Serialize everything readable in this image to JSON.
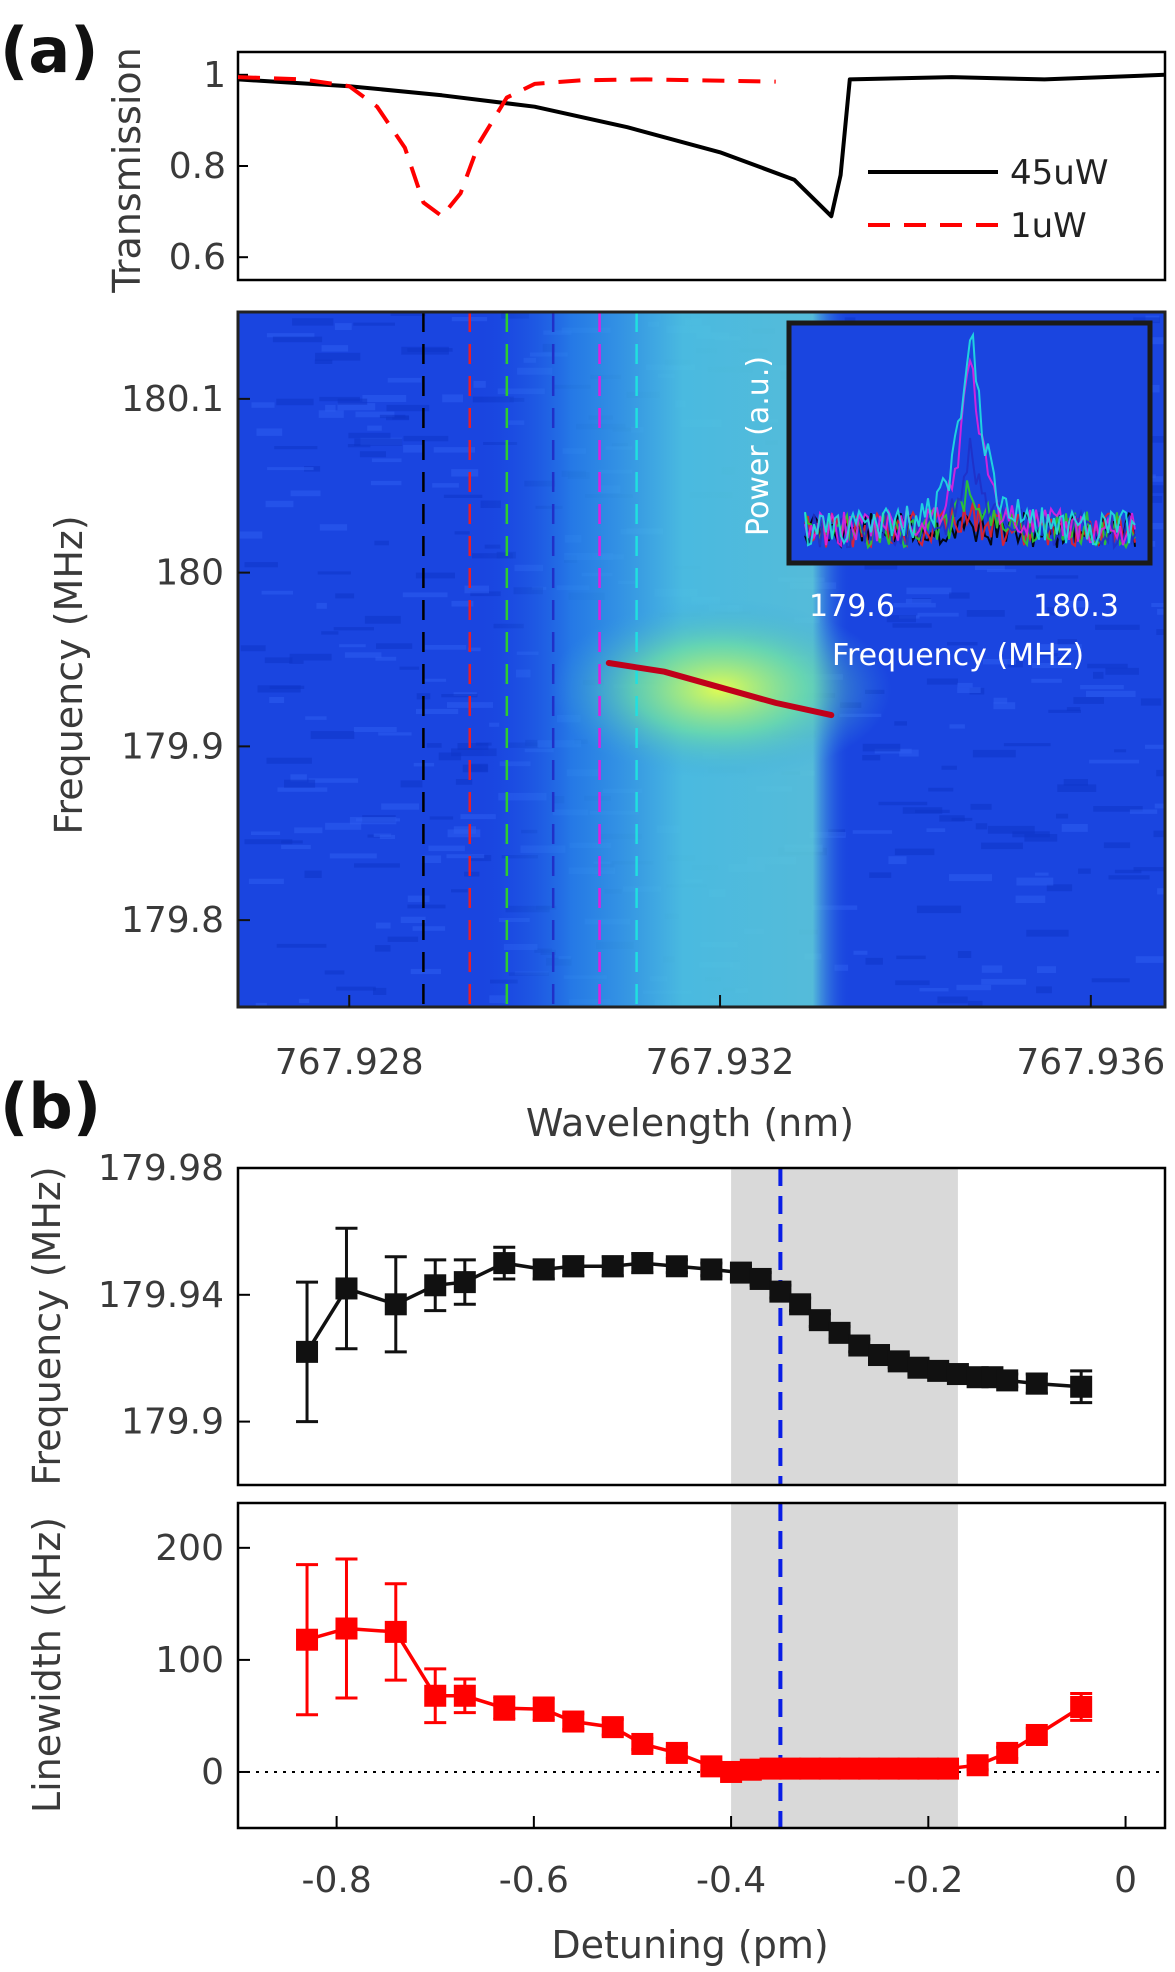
{
  "panels": {
    "a": "(a)",
    "b": "(b)"
  },
  "chart_data": [
    {
      "id": "transmission",
      "type": "line",
      "ylabel": "Transmission",
      "xlim": [
        767.9268,
        767.9368
      ],
      "ylim": [
        0.55,
        1.05
      ],
      "yticks": [
        "0.6",
        "0.8",
        "1"
      ],
      "legend_position": "right",
      "series": [
        {
          "name": "45uW",
          "color": "#000000",
          "x": [
            767.9268,
            767.928,
            767.929,
            767.93,
            767.931,
            767.932,
            767.9328,
            767.9332,
            767.9333,
            767.9334,
            767.9345,
            767.9355,
            767.9368
          ],
          "y": [
            0.99,
            0.975,
            0.955,
            0.93,
            0.885,
            0.83,
            0.77,
            0.69,
            0.78,
            0.99,
            0.995,
            0.99,
            1.0
          ]
        },
        {
          "name": "1uW",
          "color": "#ff0000",
          "x": [
            767.9268,
            767.9275,
            767.928,
            767.9283,
            767.9286,
            767.9288,
            767.929,
            767.9292,
            767.9294,
            767.9297,
            767.93,
            767.9305,
            767.9312,
            767.9318,
            767.9326
          ],
          "y": [
            0.995,
            0.99,
            0.975,
            0.93,
            0.84,
            0.72,
            0.69,
            0.74,
            0.85,
            0.95,
            0.98,
            0.988,
            0.99,
            0.988,
            0.985
          ]
        }
      ]
    },
    {
      "id": "spectrogram",
      "type": "heatmap",
      "xlabel": "Wavelength (nm)",
      "ylabel": "Frequency (MHz)",
      "xlim": [
        767.9268,
        767.9368
      ],
      "ylim": [
        179.75,
        180.15
      ],
      "xticks": [
        "767.928",
        "767.932",
        "767.936"
      ],
      "yticks": [
        "179.8",
        "179.9",
        "180",
        "180.1"
      ],
      "bright_band_x": [
        767.9294,
        767.9334
      ],
      "peak_ridge": {
        "x": [
          767.9308,
          767.9314,
          767.932,
          767.9326,
          767.9332
        ],
        "y": [
          179.948,
          179.943,
          179.934,
          179.925,
          179.918
        ]
      },
      "markers": [
        {
          "x": 767.9288,
          "color": "#000000"
        },
        {
          "x": 767.9293,
          "color": "#e8202a"
        },
        {
          "x": 767.9297,
          "color": "#2ecc2e"
        },
        {
          "x": 767.9302,
          "color": "#2030c8"
        },
        {
          "x": 767.9307,
          "color": "#e020e0"
        },
        {
          "x": 767.9311,
          "color": "#20e0e0"
        }
      ]
    },
    {
      "id": "inset",
      "type": "line",
      "xlabel": "Frequency (MHz)",
      "ylabel": "Power (a.u.)",
      "xticks": [
        "179.6",
        "180.3"
      ],
      "xlim": [
        179.5,
        180.4
      ],
      "peak_x": 179.95,
      "series_colors": [
        "#000000",
        "#e8202a",
        "#2ecc2e",
        "#2030c8",
        "#e020e0",
        "#20e0e0"
      ]
    },
    {
      "id": "frequency_vs_detuning",
      "type": "scatter",
      "ylabel": "Frequency (MHz)",
      "xlim": [
        -0.9,
        0.04
      ],
      "ylim": [
        179.88,
        179.98
      ],
      "yticks": [
        "179.9",
        "179.94",
        "179.98"
      ],
      "shaded_region": [
        -0.4,
        -0.17
      ],
      "vline_x": -0.35,
      "series": [
        {
          "color": "#111111",
          "x": [
            -0.83,
            -0.79,
            -0.74,
            -0.7,
            -0.67,
            -0.63,
            -0.59,
            -0.56,
            -0.52,
            -0.49,
            -0.455,
            -0.42,
            -0.39,
            -0.37,
            -0.35,
            -0.33,
            -0.31,
            -0.29,
            -0.27,
            -0.25,
            -0.23,
            -0.21,
            -0.19,
            -0.17,
            -0.15,
            -0.135,
            -0.12,
            -0.09,
            -0.045
          ],
          "y": [
            179.922,
            179.942,
            179.937,
            179.943,
            179.944,
            179.95,
            179.948,
            179.949,
            179.949,
            179.95,
            179.949,
            179.948,
            179.947,
            179.945,
            179.941,
            179.937,
            179.932,
            179.928,
            179.924,
            179.921,
            179.919,
            179.917,
            179.916,
            179.915,
            179.914,
            179.914,
            179.913,
            179.912,
            179.911
          ],
          "err": [
            0.022,
            0.019,
            0.015,
            0.008,
            0.007,
            0.005,
            0.003,
            0.003,
            0.003,
            0.003,
            0.002,
            0.002,
            0.002,
            0.002,
            0.002,
            0.002,
            0.002,
            0.002,
            0.002,
            0.002,
            0.002,
            0.002,
            0.002,
            0.002,
            0.002,
            0.002,
            0.002,
            0.003,
            0.005
          ]
        }
      ]
    },
    {
      "id": "linewidth_vs_detuning",
      "type": "scatter",
      "xlabel": "Detuning (pm)",
      "ylabel": "Linewidth (kHz)",
      "xlim": [
        -0.9,
        0.04
      ],
      "ylim": [
        -50,
        240
      ],
      "yticks": [
        "0",
        "100",
        "200"
      ],
      "xticks": [
        "-0.8",
        "-0.6",
        "-0.4",
        "-0.2",
        "0"
      ],
      "xtick_values": [
        -0.8,
        -0.6,
        -0.4,
        -0.2,
        0
      ],
      "zero_line": true,
      "shaded_region": [
        -0.4,
        -0.17
      ],
      "vline_x": -0.35,
      "series": [
        {
          "color": "#ff0000",
          "x": [
            -0.83,
            -0.79,
            -0.74,
            -0.7,
            -0.67,
            -0.63,
            -0.59,
            -0.56,
            -0.52,
            -0.49,
            -0.455,
            -0.42,
            -0.4,
            -0.38,
            -0.36,
            -0.34,
            -0.32,
            -0.3,
            -0.28,
            -0.26,
            -0.24,
            -0.22,
            -0.2,
            -0.18,
            -0.15,
            -0.12,
            -0.09,
            -0.045
          ],
          "y": [
            118,
            128,
            125,
            68,
            68,
            57,
            56,
            45,
            40,
            25,
            17,
            5,
            0,
            2,
            3,
            3,
            3,
            3,
            3,
            3,
            3,
            3,
            3,
            3,
            6,
            17,
            33,
            58
          ],
          "err": [
            67,
            62,
            43,
            24,
            15,
            10,
            10,
            7,
            7,
            5,
            5,
            4,
            3,
            3,
            3,
            3,
            3,
            3,
            3,
            3,
            3,
            3,
            3,
            3,
            4,
            5,
            6,
            12
          ]
        }
      ]
    }
  ]
}
